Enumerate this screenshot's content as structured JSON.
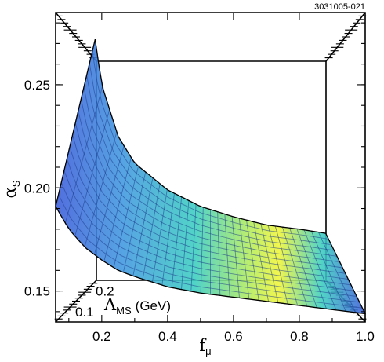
{
  "figure_code": "3031005-021",
  "chart_data": {
    "type": "surface",
    "x_axis": {
      "symbol": "f",
      "subscript": "μ",
      "range": [
        0.06,
        1.0
      ],
      "ticks": [
        0.2,
        0.4,
        0.6,
        0.8,
        1.0
      ],
      "tick_labels": [
        "0.2",
        "0.4",
        "0.6",
        "0.8",
        "1.0"
      ]
    },
    "y_axis": {
      "symbol": "α",
      "subscript": "S",
      "range": [
        0.135,
        0.285
      ],
      "ticks": [
        0.15,
        0.2,
        0.25
      ],
      "tick_labels": [
        "0.15",
        "0.20",
        "0.25"
      ]
    },
    "z_axis": {
      "symbol": "Λ",
      "subscript": "MS",
      "unit": "(GeV)",
      "range": [
        0.05,
        0.25
      ],
      "ticks": [
        0.1,
        0.2
      ],
      "tick_labels": [
        "0.1",
        "0.2"
      ]
    },
    "front_edge_curve": {
      "f_mu": [
        0.06,
        0.1,
        0.15,
        0.2,
        0.25,
        0.3,
        0.4,
        0.5,
        0.6,
        0.7,
        0.8,
        0.9,
        1.0
      ],
      "alpha_s": [
        0.191,
        0.18,
        0.171,
        0.165,
        0.16,
        0.157,
        0.152,
        0.149,
        0.147,
        0.145,
        0.143,
        0.141,
        0.139
      ]
    },
    "back_edge_curve": {
      "f_mu": [
        0.18,
        0.2,
        0.25,
        0.3,
        0.4,
        0.5,
        0.6,
        0.7,
        0.8,
        0.88
      ],
      "alpha_s": [
        0.272,
        0.25,
        0.225,
        0.212,
        0.199,
        0.191,
        0.186,
        0.182,
        0.18,
        0.178
      ]
    },
    "colormap": [
      "#3a5bd8",
      "#3f98df",
      "#39cdc0",
      "#aeeb5d",
      "#eff535"
    ],
    "grid": false
  }
}
